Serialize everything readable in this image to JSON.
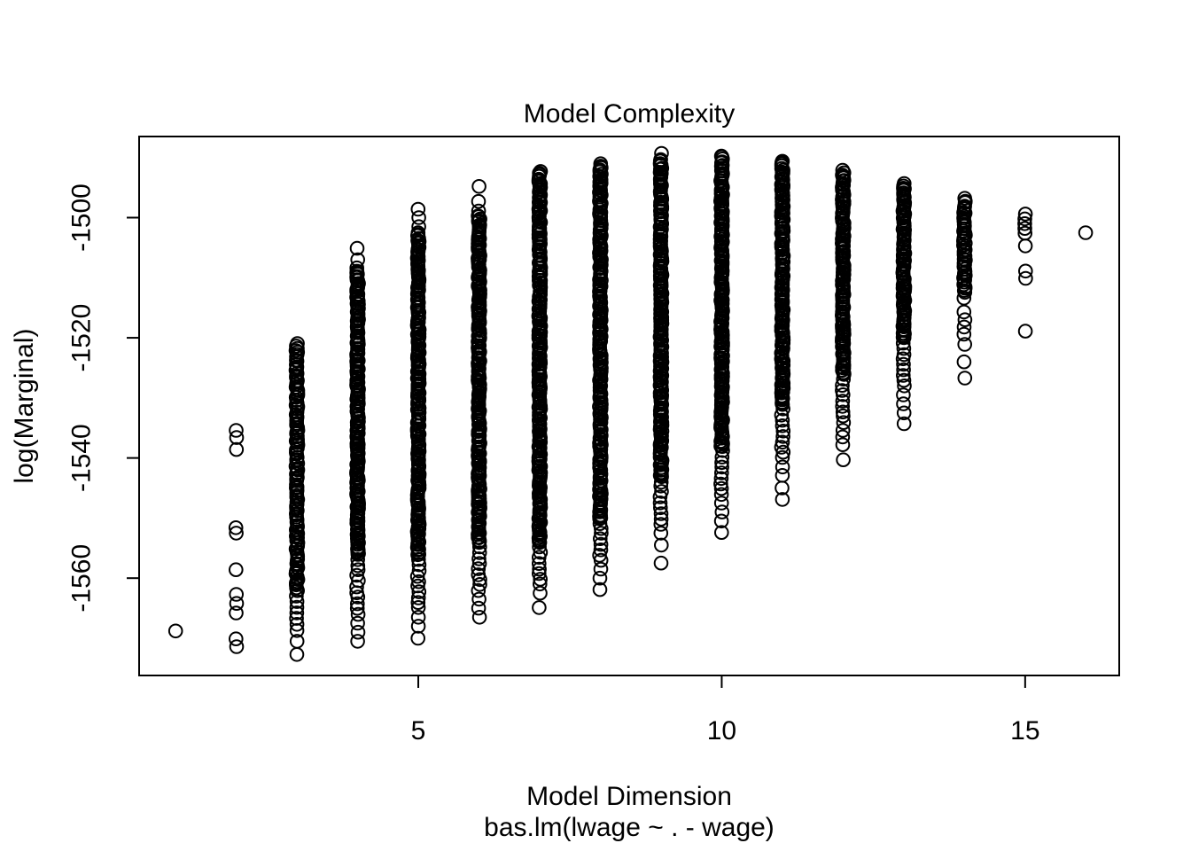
{
  "chart_data": {
    "type": "scatter",
    "title": "Model Complexity",
    "xlabel": "Model Dimension",
    "xlabel_sub": "bas.lm(lwage ~ . - wage)",
    "ylabel": "log(Marginal)",
    "xlim": [
      0.4,
      16.55
    ],
    "ylim": [
      -1576.2,
      -1486.5
    ],
    "x_ticks": [
      5,
      10,
      15
    ],
    "y_ticks": [
      -1560,
      -1540,
      -1520,
      -1500
    ],
    "grid": false,
    "legend_position": "none",
    "marker": "open-circle",
    "marker_color": "#000000",
    "background_color": "#ffffff",
    "columns": [
      {
        "dim": 1,
        "points": [
          -1568.8
        ]
      },
      {
        "dim": 2,
        "points": [
          -1535.4,
          -1536.6,
          -1538.6,
          -1551.6,
          -1552.5,
          -1558.6,
          -1562.7,
          -1564.2,
          -1565.8,
          -1570.1,
          -1571.4
        ]
      },
      {
        "dim": 3,
        "dense": [
          {
            "from": -1521.0,
            "to": -1562.0,
            "n": 110
          },
          {
            "from": -1562.0,
            "to": -1568.7,
            "n": 8
          }
        ],
        "points": [
          -1570.5,
          -1572.7
        ]
      },
      {
        "dim": 4,
        "dense": [
          {
            "from": -1508.5,
            "to": -1556.0,
            "n": 160
          },
          {
            "from": -1556.0,
            "to": -1566.0,
            "n": 12
          }
        ],
        "points": [
          -1505.1,
          -1507.0,
          -1567.5,
          -1569.0,
          -1570.5
        ]
      },
      {
        "dim": 5,
        "dense": [
          {
            "from": -1502.5,
            "to": -1556.0,
            "n": 180
          },
          {
            "from": -1556.0,
            "to": -1565.0,
            "n": 11
          }
        ],
        "points": [
          -1498.6,
          -1500.0,
          -1501.5,
          -1566.5,
          -1568.0,
          -1570.0
        ]
      },
      {
        "dim": 6,
        "dense": [
          {
            "from": -1499.6,
            "to": -1554.0,
            "n": 185
          },
          {
            "from": -1554.0,
            "to": -1562.0,
            "n": 10
          }
        ],
        "points": [
          -1494.8,
          -1497.3,
          -1498.9,
          -1563.5,
          -1565.0,
          -1566.5
        ]
      },
      {
        "dim": 7,
        "dense": [
          {
            "from": -1492.3,
            "to": -1554.0,
            "n": 210
          },
          {
            "from": -1554.0,
            "to": -1561.0,
            "n": 9
          }
        ],
        "points": [
          -1562.5,
          -1564.9
        ]
      },
      {
        "dim": 8,
        "dense": [
          {
            "from": -1491.0,
            "to": -1550.0,
            "n": 200
          },
          {
            "from": -1550.0,
            "to": -1557.0,
            "n": 9
          }
        ],
        "points": [
          -1558.5,
          -1560.0,
          -1561.9
        ]
      },
      {
        "dim": 9,
        "dense": [
          {
            "from": -1490.3,
            "to": -1543.0,
            "n": 180
          },
          {
            "from": -1543.0,
            "to": -1551.0,
            "n": 10
          }
        ],
        "points": [
          -1489.3,
          -1552.5,
          -1554.5,
          -1557.5
        ]
      },
      {
        "dim": 10,
        "dense": [
          {
            "from": -1489.7,
            "to": -1538.0,
            "n": 165
          },
          {
            "from": -1538.0,
            "to": -1546.0,
            "n": 10
          }
        ],
        "points": [
          -1547.5,
          -1549.0,
          -1550.5,
          -1552.4
        ]
      },
      {
        "dim": 11,
        "dense": [
          {
            "from": -1490.6,
            "to": -1531.0,
            "n": 140
          },
          {
            "from": -1531.0,
            "to": -1540.0,
            "n": 11
          }
        ],
        "points": [
          -1541.5,
          -1542.9,
          -1545.0,
          -1546.9
        ]
      },
      {
        "dim": 12,
        "dense": [
          {
            "from": -1492.2,
            "to": -1526.0,
            "n": 115
          },
          {
            "from": -1526.0,
            "to": -1534.0,
            "n": 10
          }
        ],
        "points": [
          -1535.4,
          -1536.5,
          -1537.8,
          -1540.3
        ]
      },
      {
        "dim": 13,
        "dense": [
          {
            "from": -1494.4,
            "to": -1520.0,
            "n": 90
          },
          {
            "from": -1520.0,
            "to": -1528.0,
            "n": 10
          }
        ],
        "points": [
          -1529.5,
          -1531.0,
          -1532.5,
          -1534.3
        ]
      },
      {
        "dim": 14,
        "dense": [
          {
            "from": -1496.9,
            "to": -1512.5,
            "n": 45
          }
        ],
        "points": [
          -1513.4,
          -1515.7,
          -1517.0,
          -1518.2,
          -1519.4,
          -1521.1,
          -1524.0,
          -1526.7
        ]
      },
      {
        "dim": 15,
        "points": [
          -1499.4,
          -1500.2,
          -1501.0,
          -1501.8,
          -1502.6,
          -1504.7,
          -1508.9,
          -1510.1,
          -1518.9
        ]
      },
      {
        "dim": 16,
        "points": [
          -1502.5
        ]
      }
    ]
  }
}
